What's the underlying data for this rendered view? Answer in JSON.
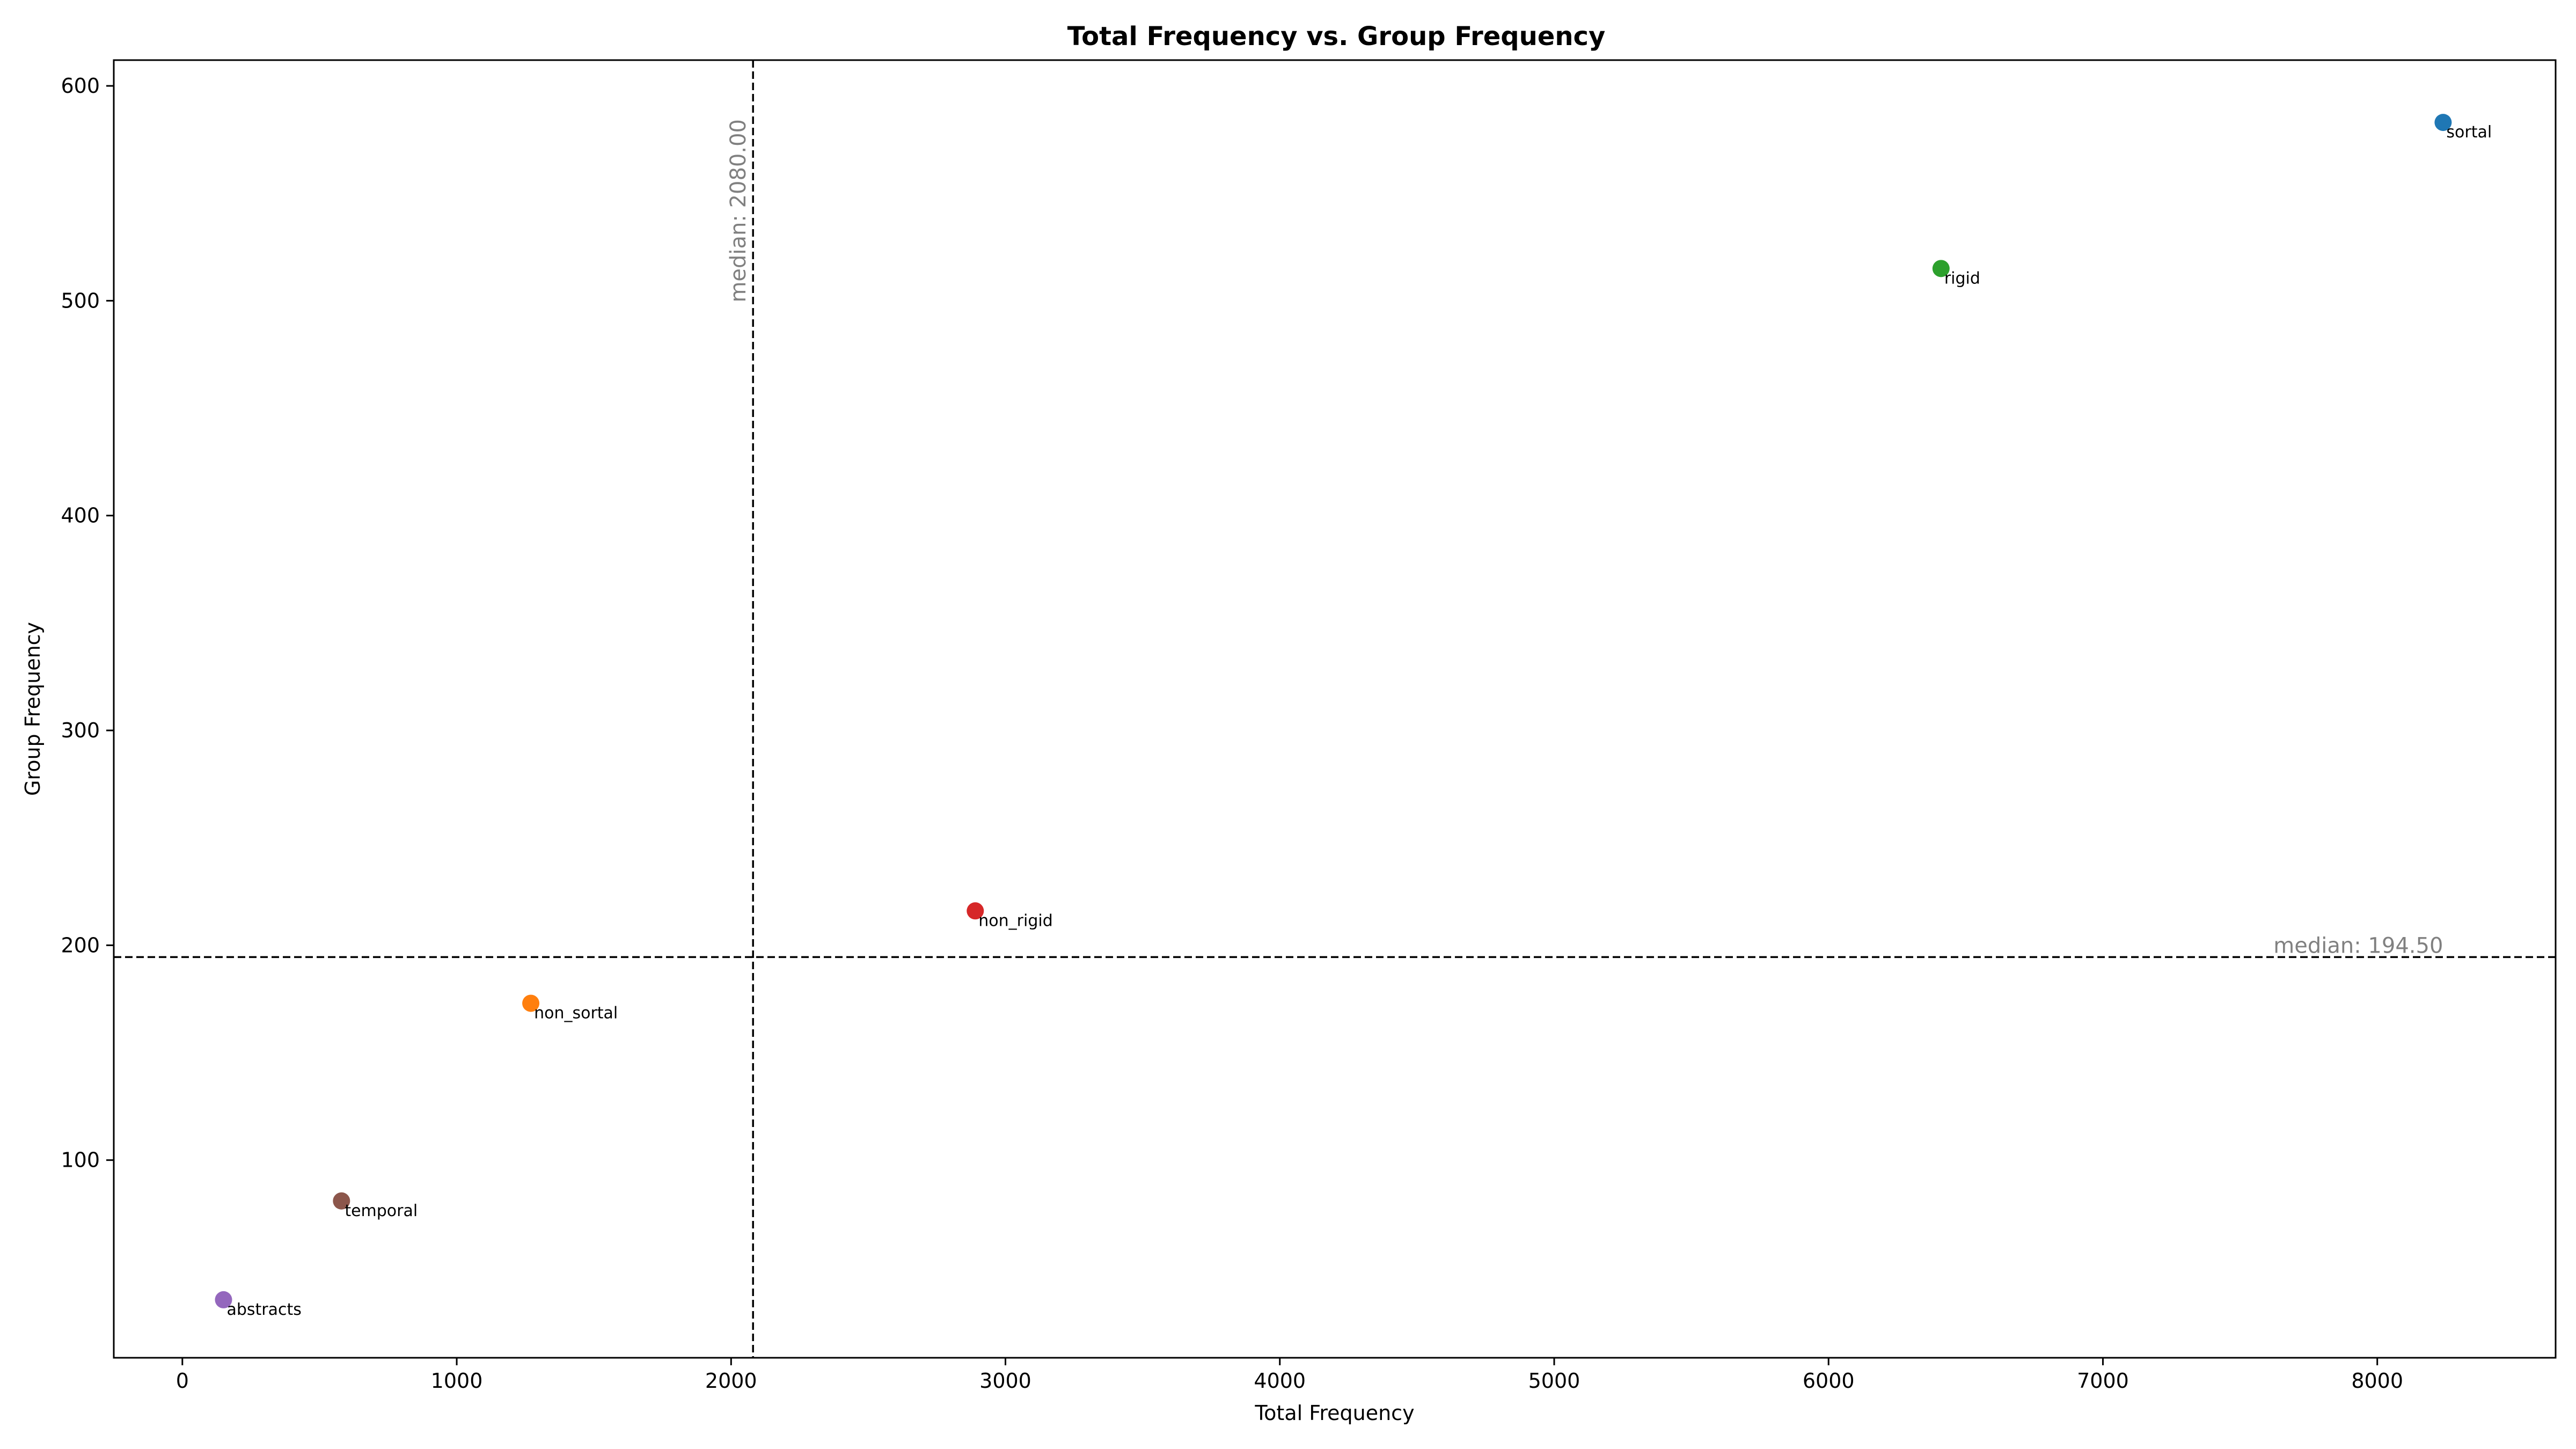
{
  "chart_data": {
    "type": "scatter",
    "title": "Total Frequency vs. Group Frequency",
    "xlabel": "Total Frequency",
    "ylabel": "Group Frequency",
    "xlim": [
      -250,
      8650
    ],
    "ylim": [
      8,
      612
    ],
    "xticks": [
      0,
      1000,
      2000,
      3000,
      4000,
      5000,
      6000,
      7000,
      8000
    ],
    "yticks": [
      100,
      200,
      300,
      400,
      500,
      600
    ],
    "grid": false,
    "points": [
      {
        "label": "sortal",
        "x": 8240,
        "y": 583,
        "color": "#1f77b4"
      },
      {
        "label": "non_sortal",
        "x": 1270,
        "y": 173,
        "color": "#ff7f0e"
      },
      {
        "label": "rigid",
        "x": 6410,
        "y": 515,
        "color": "#2ca02c"
      },
      {
        "label": "non_rigid",
        "x": 2890,
        "y": 216,
        "color": "#d62728"
      },
      {
        "label": "abstracts",
        "x": 150,
        "y": 35,
        "color": "#9467bd"
      },
      {
        "label": "temporal",
        "x": 580,
        "y": 81,
        "color": "#8c564b"
      }
    ],
    "median_x": {
      "value": 2080.0,
      "label": "median: 2080.00"
    },
    "median_y": {
      "value": 194.5,
      "label": "median: 194.50"
    }
  }
}
